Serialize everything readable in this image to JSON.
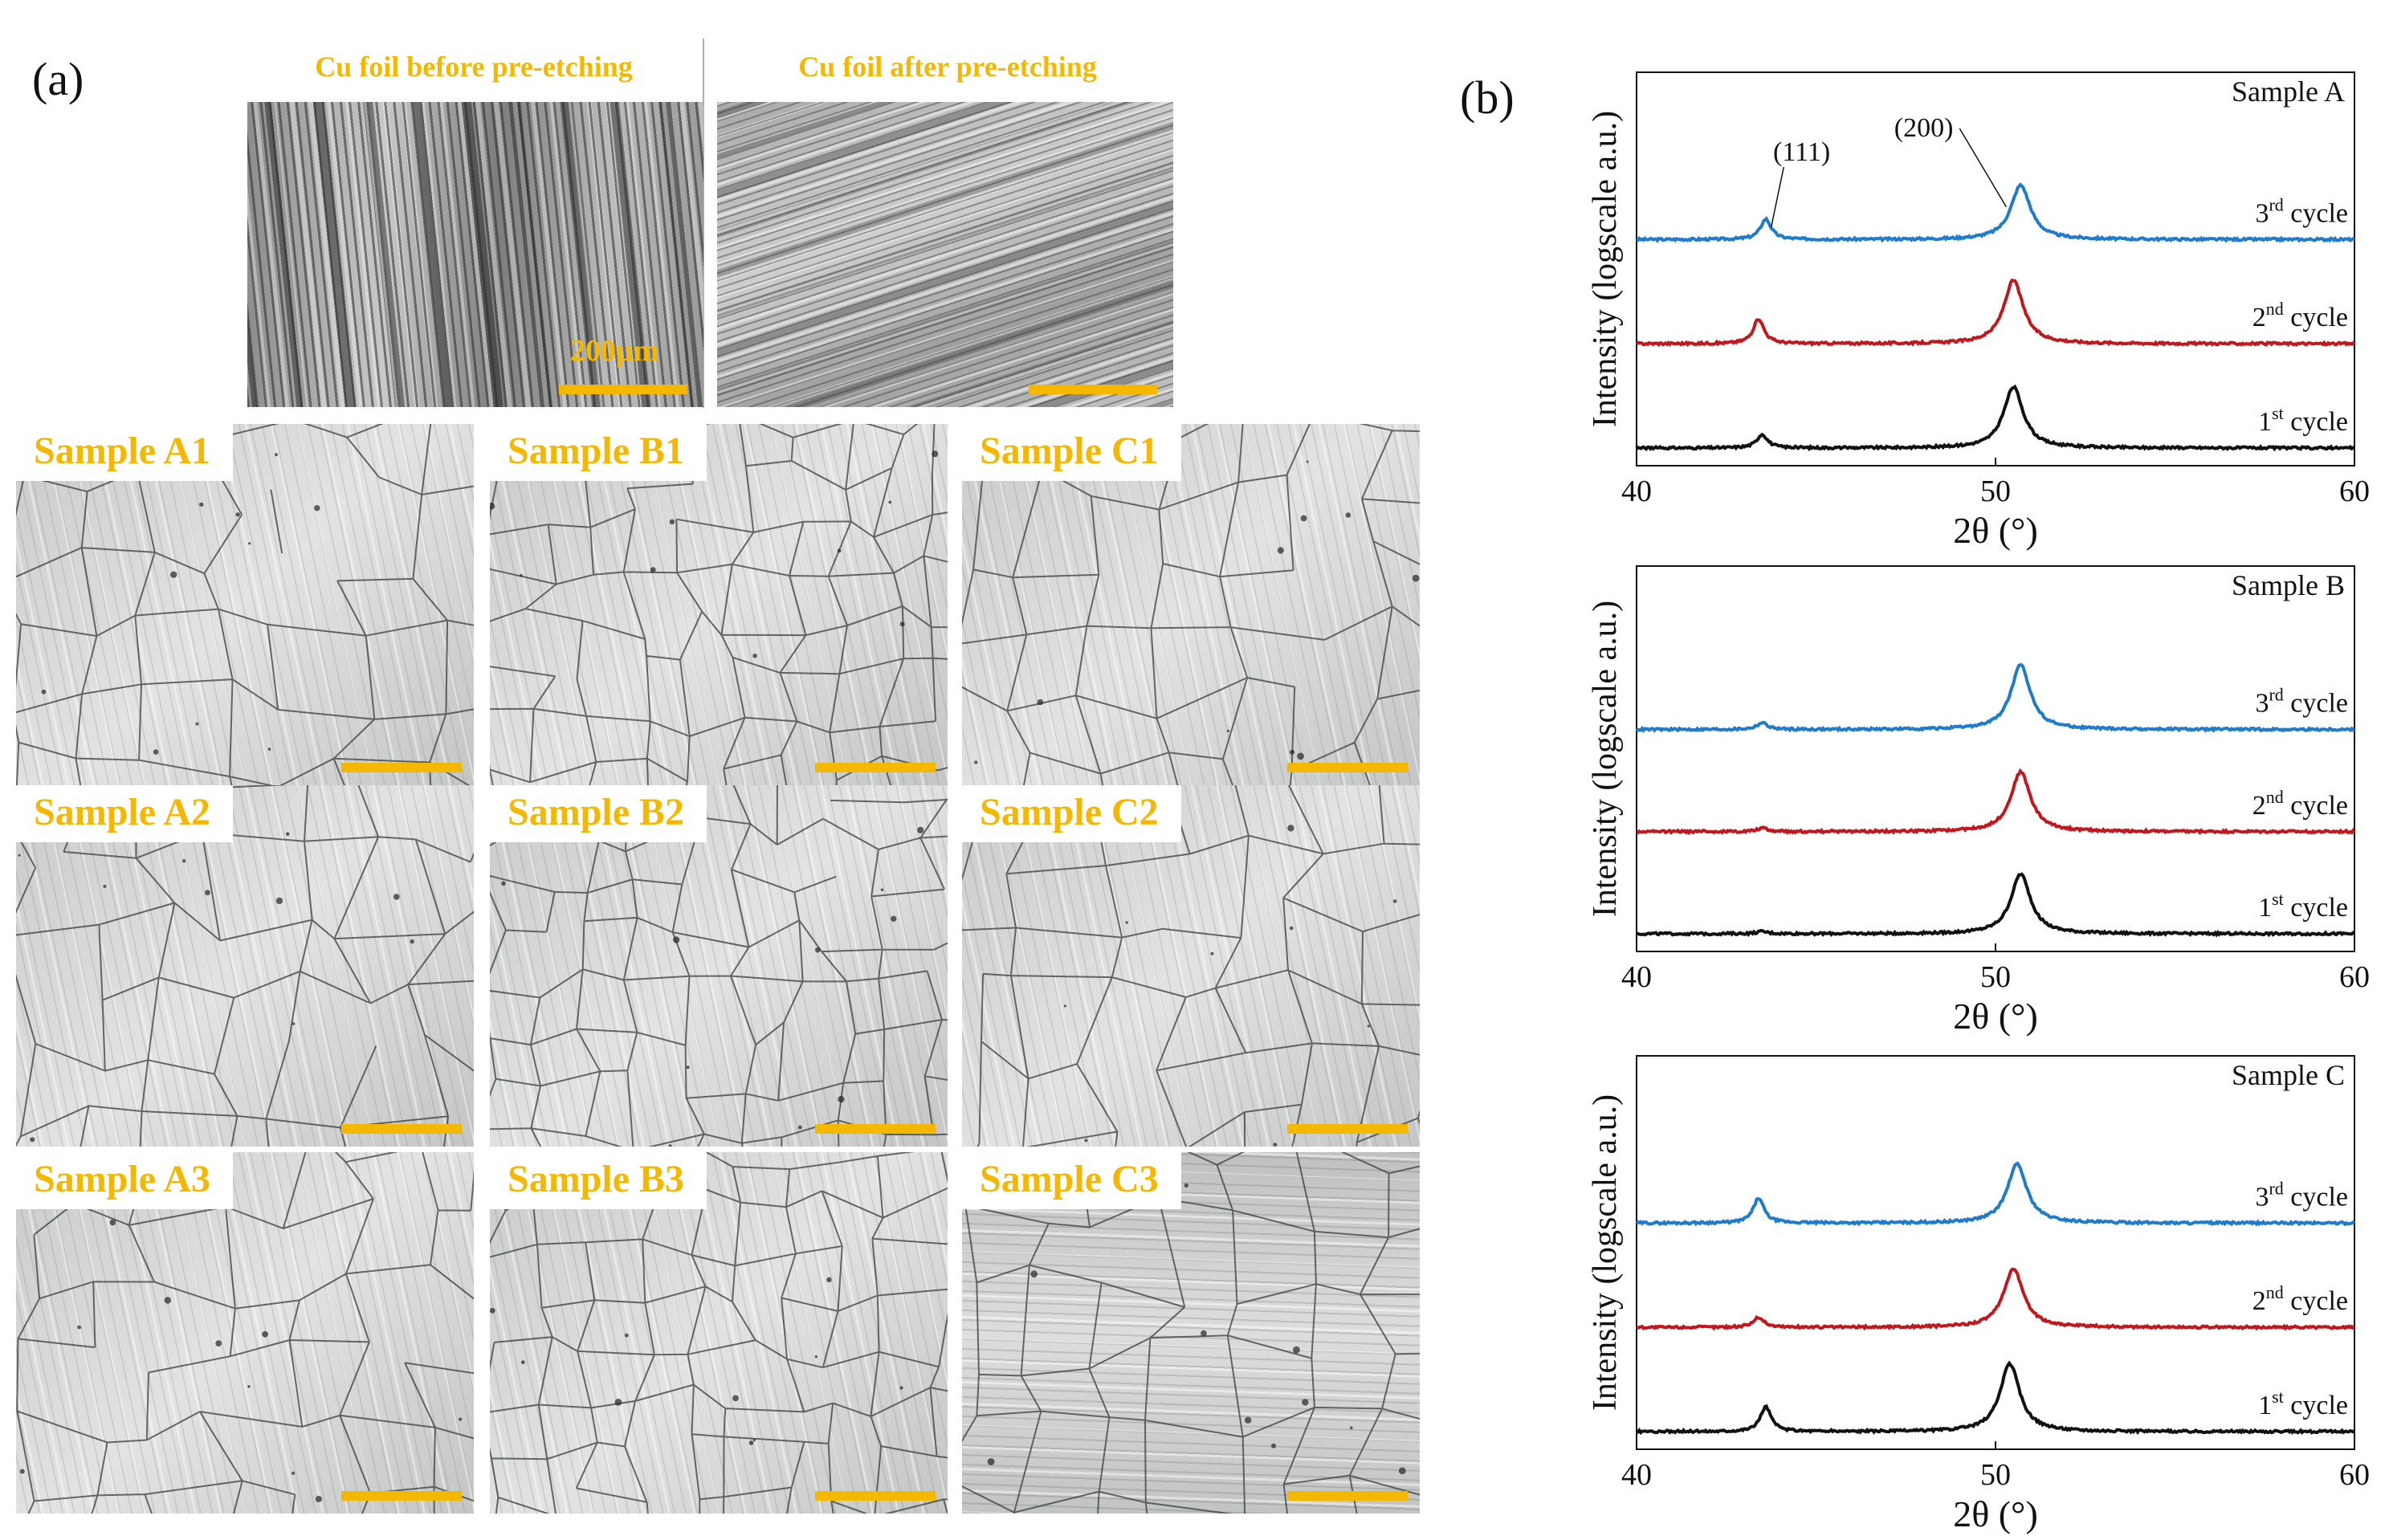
{
  "panel_a": {
    "label": "(a)",
    "foil_before_title": "Cu foil before pre-etching",
    "foil_after_title": "Cu foil after pre-etching",
    "scale_text": "200μm",
    "samples": [
      {
        "label": "Sample A1"
      },
      {
        "label": "Sample B1"
      },
      {
        "label": "Sample C1"
      },
      {
        "label": "Sample A2"
      },
      {
        "label": "Sample B2"
      },
      {
        "label": "Sample C2"
      },
      {
        "label": "Sample A3"
      },
      {
        "label": "Sample B3"
      },
      {
        "label": "Sample C3"
      }
    ]
  },
  "panel_b": {
    "label": "(b)"
  },
  "colors": {
    "accent_yellow": "#f5b800",
    "cycle1": "#111111",
    "cycle2": "#c0181c",
    "cycle3": "#1f7bcc"
  },
  "chart_data": [
    {
      "type": "line",
      "title": "Sample A",
      "xlabel": "2θ (°)",
      "ylabel": "Intensity (logscale a.u.)",
      "xlim": [
        40,
        60
      ],
      "xticks": [
        40,
        50,
        60
      ],
      "annotations": [
        "(111)",
        "(200)"
      ],
      "series": [
        {
          "name": "3rd cycle",
          "color": "#1f7bcc",
          "offset": 2,
          "peak111": 0.45,
          "peak200": 1.2,
          "pos111": 43.6,
          "pos200": 50.7
        },
        {
          "name": "2nd cycle",
          "color": "#c0181c",
          "offset": 1,
          "peak111": 0.55,
          "peak200": 1.4,
          "pos111": 43.4,
          "pos200": 50.5
        },
        {
          "name": "1st cycle",
          "color": "#111111",
          "offset": 0,
          "peak111": 0.3,
          "peak200": 1.35,
          "pos111": 43.5,
          "pos200": 50.5
        }
      ]
    },
    {
      "type": "line",
      "title": "Sample B",
      "xlabel": "2θ (°)",
      "ylabel": "Intensity (logscale a.u.)",
      "xlim": [
        40,
        60
      ],
      "xticks": [
        40,
        50,
        60
      ],
      "annotations": [],
      "series": [
        {
          "name": "3rd cycle",
          "color": "#1f7bcc",
          "offset": 2,
          "peak111": 0.15,
          "peak200": 1.45,
          "pos111": 43.5,
          "pos200": 50.7
        },
        {
          "name": "2nd cycle",
          "color": "#c0181c",
          "offset": 1,
          "peak111": 0.08,
          "peak200": 1.35,
          "pos111": 43.5,
          "pos200": 50.7
        },
        {
          "name": "1st cycle",
          "color": "#111111",
          "offset": 0,
          "peak111": 0.05,
          "peak200": 1.35,
          "pos111": 43.5,
          "pos200": 50.7
        }
      ]
    },
    {
      "type": "line",
      "title": "Sample C",
      "xlabel": "2θ (°)",
      "ylabel": "Intensity (logscale a.u.)",
      "xlim": [
        40,
        60
      ],
      "xticks": [
        40,
        50,
        60
      ],
      "annotations": [],
      "series": [
        {
          "name": "3rd cycle",
          "color": "#1f7bcc",
          "offset": 2,
          "peak111": 0.55,
          "peak200": 1.3,
          "pos111": 43.4,
          "pos200": 50.6
        },
        {
          "name": "2nd cycle",
          "color": "#c0181c",
          "offset": 1,
          "peak111": 0.22,
          "peak200": 1.3,
          "pos111": 43.4,
          "pos200": 50.5
        },
        {
          "name": "1st cycle",
          "color": "#111111",
          "offset": 0,
          "peak111": 0.55,
          "peak200": 1.5,
          "pos111": 43.6,
          "pos200": 50.4
        }
      ]
    }
  ]
}
